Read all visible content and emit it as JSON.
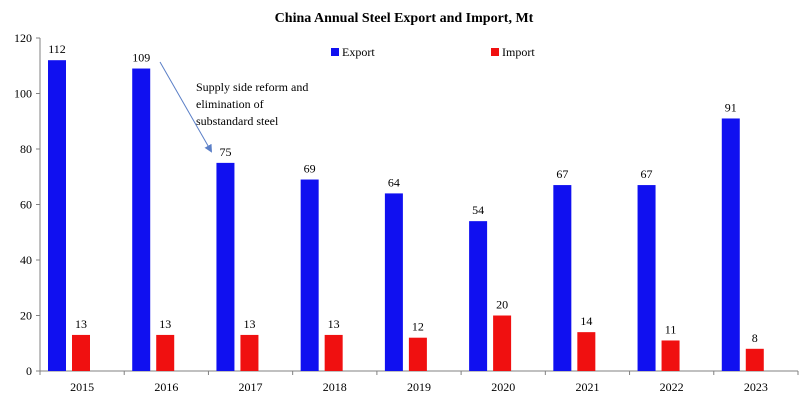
{
  "chart_data": {
    "type": "bar",
    "title": "China Annual Steel Export and Import, Mt",
    "xlabel": "",
    "ylabel": "",
    "categories": [
      "2015",
      "2016",
      "2017",
      "2018",
      "2019",
      "2020",
      "2021",
      "2022",
      "2023"
    ],
    "series": [
      {
        "name": "Export",
        "color": "#1010F0",
        "values": [
          112,
          109,
          75,
          69,
          64,
          54,
          67,
          67,
          91
        ],
        "labels": [
          "112",
          "109",
          "75",
          "69",
          "64",
          "54",
          "67",
          "67",
          "91"
        ]
      },
      {
        "name": "Import",
        "color": "#F01010",
        "values": [
          13,
          13,
          13,
          13,
          12,
          20,
          14,
          11,
          8
        ],
        "labels": [
          "13",
          "13",
          "13",
          "13",
          "12",
          "20",
          "14",
          "11",
          "8"
        ]
      }
    ],
    "ylim": [
      0,
      120
    ],
    "yticks": [
      "0",
      "20",
      "40",
      "60",
      "80",
      "100",
      "120"
    ],
    "grid": false,
    "legend_position": "top",
    "annotation": {
      "lines": [
        "Supply side reform and",
        "elimination of",
        "substandard steel"
      ],
      "arrow_from_category": "2016",
      "arrow_to_category": "2017"
    }
  }
}
